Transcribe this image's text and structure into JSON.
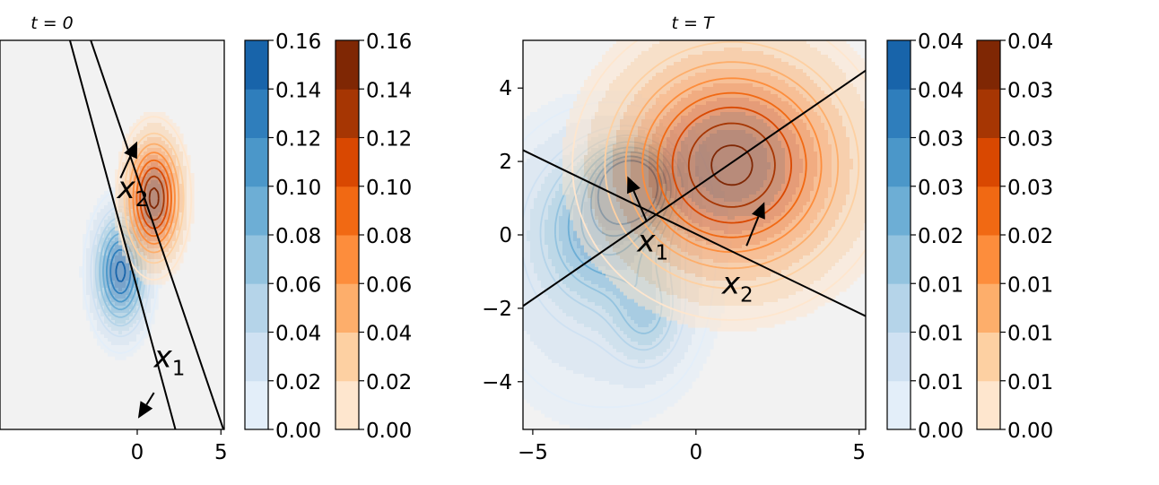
{
  "chart_data": [
    {
      "type": "contour",
      "title": "t = 0",
      "xlim": [
        -8.2,
        5.2
      ],
      "ylim": [
        -5.3,
        5.3
      ],
      "xticks": [
        0,
        5
      ],
      "xtick_labels": [
        "0",
        "5"
      ],
      "yticks": [],
      "ytick_labels": [],
      "series": [
        {
          "colormap": "Blues",
          "gaussians": [
            {
              "mx": -1.0,
              "my": -1.0,
              "sx": 1.0,
              "sy": 1.0,
              "w": 1.0
            }
          ],
          "peak": 0.16
        },
        {
          "colormap": "Oranges",
          "gaussians": [
            {
              "mx": 1.0,
              "my": 1.0,
              "sx": 1.0,
              "sy": 1.0,
              "w": 1.0
            }
          ],
          "peak": 0.16
        }
      ],
      "lines": [
        [
          [
            -3.0,
            5.6
          ],
          [
            5.3,
            -5.5
          ]
        ],
        [
          [
            -4.2,
            5.6
          ],
          [
            2.4,
            -5.5
          ]
        ]
      ],
      "arrows": [
        [
          [
            -1.0,
            1.55
          ],
          [
            0.0,
            2.55
          ]
        ],
        [
          [
            1.0,
            -4.3
          ],
          [
            0.05,
            -5.0
          ]
        ]
      ],
      "annotations": [
        {
          "x": -1.2,
          "y": 1.0,
          "text": "x",
          "sub": "2"
        },
        {
          "x": 1.0,
          "y": -3.6,
          "text": "x",
          "sub": "1"
        }
      ],
      "colorbars": [
        {
          "colormap": "Blues",
          "ticks": [
            "0.00",
            "0.02",
            "0.04",
            "0.06",
            "0.08",
            "0.10",
            "0.12",
            "0.14",
            "0.16"
          ]
        },
        {
          "colormap": "Oranges",
          "ticks": [
            "0.00",
            "0.02",
            "0.04",
            "0.06",
            "0.08",
            "0.10",
            "0.12",
            "0.14",
            "0.16"
          ]
        }
      ]
    },
    {
      "type": "contour",
      "title": "t = T",
      "xlim": [
        -5.3,
        5.2
      ],
      "ylim": [
        -5.3,
        5.3
      ],
      "xticks": [
        -5,
        0,
        5
      ],
      "xtick_labels": [
        "−5",
        "0",
        "5"
      ],
      "yticks": [
        -4,
        -2,
        0,
        2,
        4
      ],
      "ytick_labels": [
        "−4",
        "−2",
        "0",
        "2",
        "4"
      ],
      "series": [
        {
          "colormap": "Blues",
          "gaussians": [
            {
              "mx": -1.9,
              "my": 1.4,
              "sx": 0.8,
              "sy": 0.7,
              "w": 1.0
            },
            {
              "mx": -2.8,
              "my": 0.2,
              "sx": 1.3,
              "sy": 1.3,
              "w": 0.55
            },
            {
              "mx": -1.5,
              "my": -2.2,
              "sx": 0.7,
              "sy": 0.9,
              "w": 0.33
            },
            {
              "mx": -3.0,
              "my": -0.8,
              "sx": 2.4,
              "sy": 2.8,
              "w": 0.22
            }
          ],
          "peak": 0.04
        },
        {
          "colormap": "Oranges",
          "gaussians": [
            {
              "mx": 1.1,
              "my": 1.9,
              "sx": 2.2,
              "sy": 1.9,
              "w": 1.0
            }
          ],
          "peak": 0.04
        }
      ],
      "lines": [
        [
          [
            -5.4,
            2.35
          ],
          [
            5.4,
            -2.3
          ]
        ],
        [
          [
            -5.4,
            -2.0
          ],
          [
            5.4,
            4.6
          ]
        ]
      ],
      "arrows": [
        [
          [
            -1.5,
            0.35
          ],
          [
            -2.1,
            1.6
          ]
        ],
        [
          [
            1.55,
            -0.3
          ],
          [
            2.1,
            0.9
          ]
        ]
      ],
      "annotations": [
        {
          "x": -1.8,
          "y": -0.45,
          "text": "x",
          "sub": "1"
        },
        {
          "x": 0.8,
          "y": -1.6,
          "text": "x",
          "sub": "2"
        }
      ],
      "colorbars": [
        {
          "colormap": "Blues",
          "ticks": [
            "0.00",
            "0.01",
            "0.01",
            "0.01",
            "0.02",
            "0.03",
            "0.03",
            "0.04",
            "0.04"
          ]
        },
        {
          "colormap": "Oranges",
          "ticks": [
            "0.00",
            "0.01",
            "0.01",
            "0.01",
            "0.02",
            "0.03",
            "0.03",
            "0.03",
            "0.04"
          ]
        }
      ]
    }
  ],
  "colors": {
    "blues": [
      "#f7fbff",
      "#e3eef9",
      "#cfe1f2",
      "#b5d4e9",
      "#93c3df",
      "#6daed5",
      "#4b97c9",
      "#2f7ebc",
      "#1864aa"
    ],
    "oranges": [
      "#fff5eb",
      "#fee6ce",
      "#fdd0a2",
      "#fdae6b",
      "#fd8d3c",
      "#f16913",
      "#d94801",
      "#a63603",
      "#7f2704"
    ],
    "background": "#f2f2f2"
  }
}
